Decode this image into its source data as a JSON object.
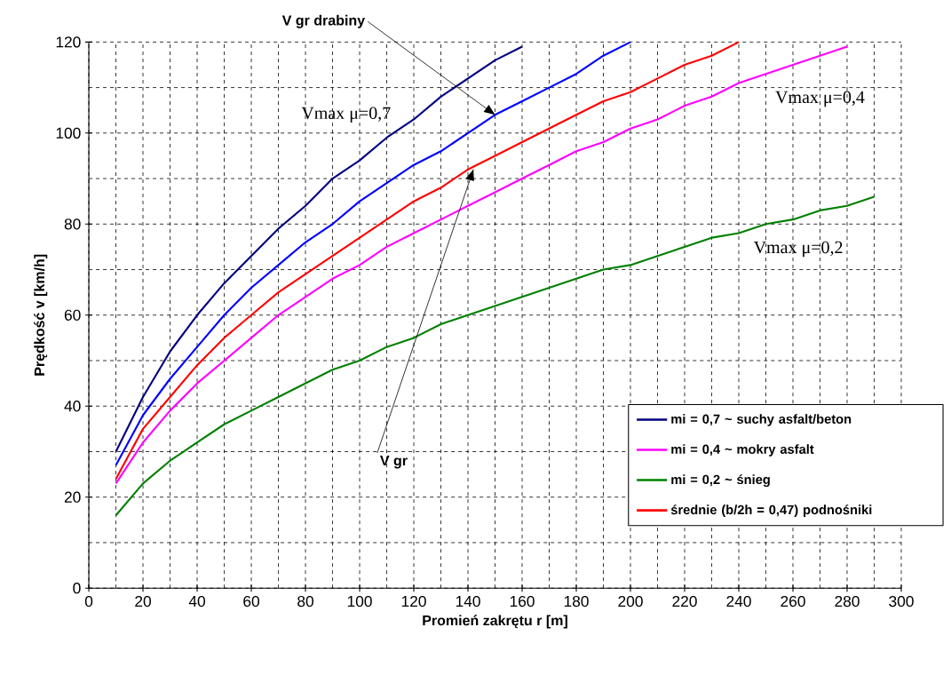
{
  "chart_data": {
    "type": "line",
    "xlabel": "Promień zakrętu r [m]",
    "ylabel": "Prędkość v [km/h]",
    "xlim": [
      0,
      300
    ],
    "ylim": [
      0,
      120
    ],
    "xticks": [
      0,
      20,
      40,
      60,
      80,
      100,
      120,
      140,
      160,
      180,
      200,
      220,
      240,
      260,
      280,
      300
    ],
    "yticks": [
      0,
      20,
      40,
      60,
      80,
      100,
      120
    ],
    "grid": true,
    "legend": "right",
    "series": [
      {
        "name": "mi = 0,7 ~ suchy asfalt/beton",
        "color": "#000080",
        "x": [
          10,
          20,
          30,
          40,
          50,
          60,
          70,
          80,
          90,
          100,
          110,
          120,
          130,
          140,
          150,
          160
        ],
        "values": [
          30,
          42,
          52,
          60,
          67,
          73,
          79,
          84,
          90,
          94,
          99,
          103,
          108,
          112,
          116,
          119
        ]
      },
      {
        "color": "#0000ff",
        "x": [
          10,
          20,
          30,
          40,
          50,
          60,
          70,
          80,
          90,
          100,
          110,
          120,
          130,
          140,
          150,
          160,
          170,
          180,
          190,
          200
        ],
        "values": [
          27,
          38,
          46,
          53,
          60,
          66,
          71,
          76,
          80,
          85,
          89,
          93,
          96,
          100,
          104,
          107,
          110,
          113,
          117,
          120
        ]
      },
      {
        "name": "mi = 0,4 ~ mokry asfalt",
        "color": "#ff00ff",
        "x": [
          10,
          20,
          30,
          40,
          50,
          60,
          70,
          80,
          90,
          100,
          110,
          120,
          130,
          140,
          150,
          160,
          170,
          180,
          190,
          200,
          210,
          220,
          230,
          240,
          250,
          260,
          270,
          280
        ],
        "values": [
          23,
          32,
          39,
          45,
          50,
          55,
          60,
          64,
          68,
          71,
          75,
          78,
          81,
          84,
          87,
          90,
          93,
          96,
          98,
          101,
          103,
          106,
          108,
          111,
          113,
          115,
          117,
          119
        ]
      },
      {
        "name": "mi = 0,2 ~ śnieg",
        "color": "#008000",
        "x": [
          10,
          20,
          30,
          40,
          50,
          60,
          70,
          80,
          90,
          100,
          110,
          120,
          130,
          140,
          150,
          160,
          170,
          180,
          190,
          200,
          210,
          220,
          230,
          240,
          250,
          260,
          270,
          280,
          290
        ],
        "values": [
          16,
          23,
          28,
          32,
          36,
          39,
          42,
          45,
          48,
          50,
          53,
          55,
          58,
          60,
          62,
          64,
          66,
          68,
          70,
          71,
          73,
          75,
          77,
          78,
          80,
          81,
          83,
          84,
          86
        ]
      },
      {
        "name": "średnie (b/2h = 0,47) podnośniki",
        "color": "#ff0000",
        "x": [
          10,
          20,
          30,
          40,
          50,
          60,
          70,
          80,
          90,
          100,
          110,
          120,
          130,
          140,
          150,
          160,
          170,
          180,
          190,
          200,
          210,
          220,
          230,
          240
        ],
        "values": [
          24,
          35,
          42,
          49,
          55,
          60,
          65,
          69,
          73,
          77,
          81,
          85,
          88,
          92,
          95,
          98,
          101,
          104,
          107,
          109,
          112,
          115,
          117,
          120
        ]
      }
    ],
    "annotations": [
      {
        "text": "V gr drabiny",
        "x": 150,
        "y": 104
      },
      "Vmax μ=0,7",
      "Vmax μ=0,4",
      "Vmax μ=0,2",
      {
        "text": "V gr",
        "x": 142,
        "y": 92
      }
    ]
  }
}
